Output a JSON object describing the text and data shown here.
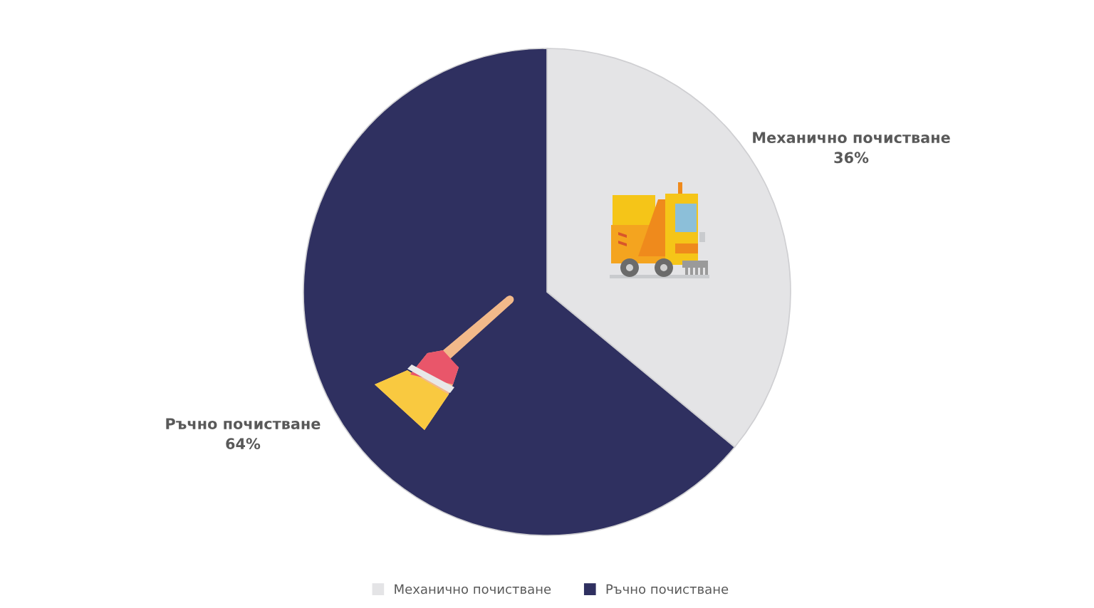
{
  "chart_data": {
    "type": "pie",
    "categories": [
      "Механично почистване",
      "Ръчно почистване"
    ],
    "values": [
      36,
      64
    ],
    "colors": [
      "#e4e4e6",
      "#2f3060"
    ],
    "value_labels": [
      "36%",
      "64%"
    ],
    "legend": "bottom"
  }
}
